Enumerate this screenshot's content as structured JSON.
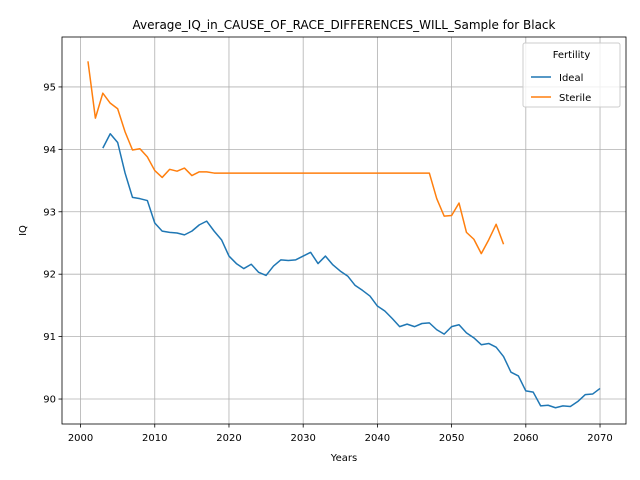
{
  "chart_data": {
    "type": "line",
    "title": "Average_IQ_in_CAUSE_OF_RACE_DIFFERENCES_WILL_Sample for Black",
    "xlabel": "Years",
    "ylabel": "IQ",
    "xlim": [
      1997.5,
      2073.5
    ],
    "ylim": [
      89.6,
      95.8
    ],
    "xticks": [
      2000,
      2010,
      2020,
      2030,
      2040,
      2050,
      2060,
      2070
    ],
    "yticks": [
      90,
      91,
      92,
      93,
      94,
      95
    ],
    "grid": true,
    "legend": {
      "title": "Fertility",
      "placement": "upper right"
    },
    "series": [
      {
        "name": "Ideal",
        "color": "#1f77b4",
        "x": [
          2003,
          2004,
          2005,
          2006,
          2007,
          2008,
          2009,
          2010,
          2011,
          2012,
          2013,
          2014,
          2015,
          2016,
          2017,
          2018,
          2019,
          2020,
          2021,
          2022,
          2023,
          2024,
          2025,
          2026,
          2027,
          2028,
          2029,
          2030,
          2031,
          2032,
          2033,
          2034,
          2035,
          2036,
          2037,
          2038,
          2039,
          2040,
          2041,
          2042,
          2043,
          2044,
          2045,
          2046,
          2047,
          2048,
          2049,
          2050,
          2051,
          2052,
          2053,
          2054,
          2055,
          2056,
          2057,
          2058,
          2059,
          2060,
          2061,
          2062,
          2063,
          2064,
          2065,
          2066,
          2067,
          2068,
          2069,
          2070
        ],
        "y": [
          94.02,
          94.25,
          94.11,
          93.62,
          93.23,
          93.21,
          93.18,
          92.82,
          92.69,
          92.67,
          92.66,
          92.63,
          92.69,
          92.79,
          92.85,
          92.69,
          92.55,
          92.29,
          92.17,
          92.09,
          92.16,
          92.03,
          91.98,
          92.13,
          92.23,
          92.22,
          92.23,
          92.29,
          92.35,
          92.17,
          92.29,
          92.15,
          92.05,
          91.97,
          91.82,
          91.74,
          91.65,
          91.49,
          91.41,
          91.29,
          91.16,
          91.2,
          91.16,
          91.21,
          91.22,
          91.11,
          91.04,
          91.16,
          91.19,
          91.06,
          90.98,
          90.87,
          90.89,
          90.83,
          90.68,
          90.43,
          90.37,
          90.13,
          90.11,
          89.89,
          89.9,
          89.86,
          89.89,
          89.88,
          89.96,
          90.07,
          90.08,
          90.17
        ]
      },
      {
        "name": "Sterile",
        "color": "#ff7f0e",
        "x": [
          2001,
          2002,
          2003,
          2004,
          2005,
          2006,
          2007,
          2008,
          2009,
          2010,
          2011,
          2012,
          2013,
          2014,
          2015,
          2016,
          2017,
          2018,
          2019,
          2020,
          2021,
          2022,
          2023,
          2024,
          2025,
          2026,
          2027,
          2028,
          2029,
          2030,
          2031,
          2032,
          2033,
          2034,
          2035,
          2036,
          2037,
          2038,
          2039,
          2040,
          2041,
          2042,
          2043,
          2044,
          2045,
          2046,
          2047,
          2048,
          2049,
          2050,
          2051,
          2052,
          2053,
          2054,
          2055,
          2056,
          2057
        ],
        "y": [
          95.41,
          94.5,
          94.9,
          94.74,
          94.65,
          94.28,
          93.99,
          94.01,
          93.88,
          93.66,
          93.55,
          93.68,
          93.65,
          93.7,
          93.58,
          93.64,
          93.64,
          93.62,
          93.62,
          93.62,
          93.62,
          93.62,
          93.62,
          93.62,
          93.62,
          93.62,
          93.62,
          93.62,
          93.62,
          93.62,
          93.62,
          93.62,
          93.62,
          93.62,
          93.62,
          93.62,
          93.62,
          93.62,
          93.62,
          93.62,
          93.62,
          93.62,
          93.62,
          93.62,
          93.62,
          93.62,
          93.62,
          93.21,
          92.93,
          92.94,
          93.14,
          92.67,
          92.56,
          92.33,
          92.55,
          92.8,
          92.48
        ]
      }
    ]
  }
}
